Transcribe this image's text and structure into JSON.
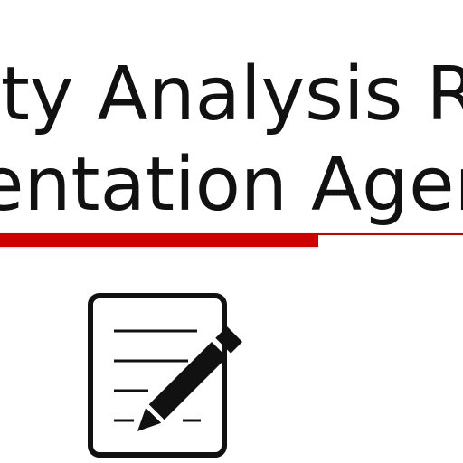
{
  "slide": {
    "title_line_1": "ity Analysis Re",
    "title_line_2": "entation Agen"
  },
  "colors": {
    "accent": "#cc0000",
    "text": "#111111"
  },
  "icons": {
    "document": "document-edit-icon",
    "pencil": "pencil-icon"
  }
}
